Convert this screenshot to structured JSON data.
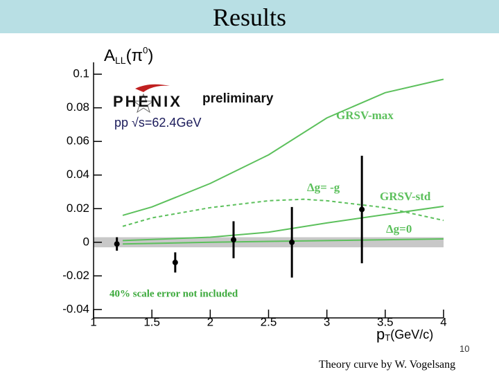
{
  "header": {
    "title": "Results"
  },
  "chart_data": {
    "type": "scatter",
    "y_label_parts": [
      "A",
      "LL",
      "(π",
      "0",
      ")"
    ],
    "x_label_parts": [
      "p",
      "T",
      "(GeV/c)"
    ],
    "xlim": [
      1,
      4
    ],
    "xticks": [
      1,
      1.5,
      2,
      2.5,
      3,
      3.5,
      4
    ],
    "ylim": [
      -0.045,
      0.105
    ],
    "yticks": [
      -0.04,
      -0.02,
      0,
      0.02,
      0.04,
      0.06,
      0.08,
      0.1
    ],
    "band": {
      "values": [
        -0.003,
        0.003
      ],
      "color": "#c8c8c8"
    },
    "points": {
      "x": [
        1.2,
        1.7,
        2.2,
        2.7,
        3.3
      ],
      "values": [
        -0.001,
        -0.012,
        0.0015,
        0,
        0.0195
      ],
      "errors": [
        0.004,
        0.006,
        0.011,
        0.021,
        0.032
      ],
      "color": "#000000"
    },
    "series": [
      {
        "name": "GRSV-max",
        "color": "#5cc05c",
        "dashed": false,
        "x": [
          1.25,
          1.5,
          2,
          2.5,
          3,
          3.5,
          4
        ],
        "values": [
          0.016,
          0.021,
          0.035,
          0.052,
          0.074,
          0.089,
          0.097
        ]
      },
      {
        "name": "Δg= -g",
        "color": "#5cc05c",
        "dashed": true,
        "x": [
          1.25,
          1.5,
          2,
          2.5,
          2.8,
          3,
          3.5,
          4
        ],
        "values": [
          0.0095,
          0.0145,
          0.0206,
          0.0247,
          0.0256,
          0.0247,
          0.0206,
          0.013
        ]
      },
      {
        "name": "GRSV-std",
        "color": "#5cc05c",
        "dashed": false,
        "x": [
          1.25,
          2,
          2.5,
          3,
          3.5,
          4
        ],
        "values": [
          0.001,
          0.003,
          0.006,
          0.0115,
          0.0165,
          0.0214
        ]
      },
      {
        "name": "Δg=0",
        "color": "#5cc05c",
        "dashed": false,
        "x": [
          1.25,
          2,
          3,
          4
        ],
        "values": [
          -0.001,
          0,
          0.001,
          0.002
        ]
      }
    ],
    "annotations": [
      "PHENIX",
      "preliminary",
      "pp √s=62.4GeV",
      "40% scale error not included"
    ]
  },
  "footer": {
    "page_number": "10",
    "credit": "Theory curve by W. Vogelsang"
  }
}
